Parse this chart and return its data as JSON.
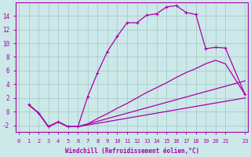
{
  "xlabel": "Windchill (Refroidissement éolien,°C)",
  "bg_color": "#cce8e8",
  "grid_color": "#aacccc",
  "line_color": "#aa00aa",
  "xlim": [
    -0.3,
    23.3
  ],
  "ylim": [
    -3.0,
    16.0
  ],
  "xticks": [
    0,
    1,
    2,
    3,
    4,
    5,
    6,
    7,
    8,
    9,
    10,
    11,
    12,
    13,
    14,
    15,
    16,
    17,
    18,
    19,
    20,
    21,
    23
  ],
  "yticks": [
    -2,
    0,
    2,
    4,
    6,
    8,
    10,
    12,
    14
  ],
  "main_x": [
    1,
    2,
    3,
    4,
    5,
    6,
    7,
    8,
    9,
    10,
    11,
    12,
    13,
    14,
    15,
    16,
    17,
    18,
    19,
    20,
    21,
    23
  ],
  "main_y": [
    1.0,
    -0.2,
    -2.2,
    -1.5,
    -2.2,
    -2.2,
    2.2,
    5.7,
    8.8,
    11.0,
    13.0,
    13.0,
    14.1,
    14.3,
    15.3,
    15.5,
    14.5,
    14.2,
    9.2,
    9.4,
    9.3,
    2.5
  ],
  "fan1_x": [
    1,
    2,
    3,
    4,
    5,
    6,
    7,
    8,
    9,
    10,
    11,
    12,
    13,
    14,
    15,
    16,
    17,
    18,
    19,
    20,
    21,
    23
  ],
  "fan1_y": [
    1.0,
    -0.2,
    -2.2,
    -1.5,
    -2.2,
    -2.2,
    -1.8,
    -1.0,
    -0.3,
    0.5,
    1.2,
    2.0,
    2.8,
    3.5,
    4.2,
    5.0,
    5.7,
    6.3,
    7.0,
    7.5,
    7.0,
    2.5
  ],
  "fan2_x": [
    1,
    2,
    3,
    4,
    5,
    6,
    23
  ],
  "fan2_y": [
    1.0,
    -0.2,
    -2.2,
    -1.5,
    -2.2,
    -2.2,
    4.5
  ],
  "fan3_x": [
    1,
    2,
    3,
    4,
    5,
    6,
    23
  ],
  "fan3_y": [
    1.0,
    -0.2,
    -2.2,
    -1.5,
    -2.2,
    -2.2,
    2.0
  ]
}
